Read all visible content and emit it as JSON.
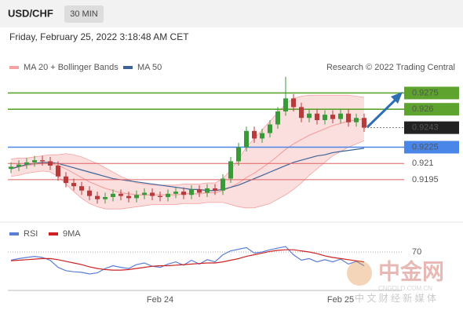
{
  "header": {
    "symbol": "USD/CHF",
    "interval": "30 MIN",
    "datetime": "Friday, February 25, 2022 3:18:48 AM CET"
  },
  "watermark": {
    "brand": "中金网",
    "site": "CNGOLD.COM.CN",
    "tagline": "中 文 财 经 新 媒 体"
  },
  "chart_data": [
    {
      "type": "candlestick",
      "credit": "Research © 2022 Trading Central",
      "categories": [
        null,
        null,
        null,
        null,
        null,
        null,
        null,
        null,
        null,
        null,
        null,
        null,
        null,
        null,
        null,
        null,
        null,
        null,
        null,
        "Feb 24",
        null,
        null,
        null,
        null,
        null,
        null,
        null,
        null,
        null,
        null,
        null,
        null,
        null,
        null,
        null,
        null,
        null,
        null,
        null,
        null,
        null,
        null,
        "Feb 25",
        null,
        null,
        null
      ],
      "open": [
        0.9205,
        0.9207,
        0.9209,
        0.9211,
        0.9213,
        0.9212,
        0.9208,
        0.9198,
        0.9192,
        0.9189,
        0.9185,
        0.918,
        0.9177,
        0.9179,
        0.9182,
        0.918,
        0.9178,
        0.9181,
        0.9183,
        0.918,
        0.9179,
        0.9182,
        0.9184,
        0.9181,
        0.9186,
        0.9183,
        0.9187,
        0.9185,
        0.9196,
        0.9212,
        0.9225,
        0.924,
        0.9233,
        0.9238,
        0.9246,
        0.9258,
        0.927,
        0.9262,
        0.9252,
        0.9256,
        0.925,
        0.9255,
        0.9251,
        0.9256,
        0.9248,
        0.9252
      ],
      "high": [
        0.9211,
        0.9213,
        0.9215,
        0.9217,
        0.9217,
        0.9216,
        0.9212,
        0.9202,
        0.9196,
        0.9193,
        0.9189,
        0.9184,
        0.9183,
        0.9186,
        0.9186,
        0.9184,
        0.9185,
        0.9187,
        0.9187,
        0.9184,
        0.9186,
        0.9188,
        0.9188,
        0.919,
        0.919,
        0.9191,
        0.9191,
        0.92,
        0.9216,
        0.9229,
        0.9244,
        0.9244,
        0.9242,
        0.925,
        0.9262,
        0.929,
        0.9274,
        0.9266,
        0.926,
        0.926,
        0.9259,
        0.9259,
        0.926,
        0.926,
        0.9256,
        0.9256
      ],
      "low": [
        0.9201,
        0.9203,
        0.9205,
        0.9207,
        0.9208,
        0.9204,
        0.9194,
        0.9188,
        0.9185,
        0.9181,
        0.9176,
        0.9173,
        0.9173,
        0.9175,
        0.9176,
        0.9174,
        0.9174,
        0.9177,
        0.9176,
        0.9175,
        0.9175,
        0.9178,
        0.9177,
        0.9177,
        0.9179,
        0.9179,
        0.9181,
        0.9181,
        0.9192,
        0.9208,
        0.9221,
        0.9229,
        0.9229,
        0.9234,
        0.9242,
        0.9254,
        0.9258,
        0.9248,
        0.9248,
        0.9246,
        0.9246,
        0.9247,
        0.9247,
        0.9244,
        0.9244,
        0.9239
      ],
      "close": [
        0.9207,
        0.9209,
        0.9211,
        0.9213,
        0.9212,
        0.9208,
        0.9198,
        0.9192,
        0.9189,
        0.9185,
        0.918,
        0.9177,
        0.9179,
        0.9182,
        0.918,
        0.9178,
        0.9181,
        0.9183,
        0.918,
        0.9179,
        0.9182,
        0.9184,
        0.9181,
        0.9186,
        0.9183,
        0.9187,
        0.9185,
        0.9196,
        0.9212,
        0.9225,
        0.924,
        0.9233,
        0.9238,
        0.9246,
        0.9258,
        0.927,
        0.9262,
        0.9252,
        0.9256,
        0.925,
        0.9255,
        0.9251,
        0.9256,
        0.9248,
        0.9252,
        0.9243
      ],
      "up_color": "#3a9a3a",
      "down_color": "#b83a3a",
      "series": [
        {
          "name": "MA 20 + Bollinger Bands",
          "color": "#f4a3a3",
          "values": [
            0.9206,
            0.9207,
            0.9208,
            0.9209,
            0.921,
            0.921,
            0.9208,
            0.9205,
            0.9201,
            0.9197,
            0.9193,
            0.919,
            0.9187,
            0.9185,
            0.9183,
            0.9182,
            0.9181,
            0.9181,
            0.9181,
            0.9181,
            0.9181,
            0.9181,
            0.9182,
            0.9182,
            0.9182,
            0.9183,
            0.9183,
            0.9185,
            0.9188,
            0.9192,
            0.9197,
            0.9201,
            0.9206,
            0.9211,
            0.9217,
            0.9223,
            0.9228,
            0.9232,
            0.9236,
            0.9239,
            0.9242,
            0.9245,
            0.9247,
            0.9249,
            0.925,
            0.9251
          ],
          "upper": [
            0.9214,
            0.9215,
            0.9215,
            0.9216,
            0.9217,
            0.9218,
            0.9218,
            0.9219,
            0.9218,
            0.9216,
            0.9213,
            0.921,
            0.9206,
            0.9202,
            0.9198,
            0.9195,
            0.9192,
            0.9191,
            0.919,
            0.919,
            0.919,
            0.919,
            0.9191,
            0.9191,
            0.9191,
            0.9192,
            0.9192,
            0.9196,
            0.9204,
            0.9214,
            0.9225,
            0.9233,
            0.9241,
            0.9249,
            0.9257,
            0.9265,
            0.927,
            0.9272,
            0.9273,
            0.9273,
            0.9273,
            0.9273,
            0.9273,
            0.9273,
            0.9272,
            0.9271
          ],
          "lower": [
            0.9198,
            0.9199,
            0.9201,
            0.9202,
            0.9203,
            0.9202,
            0.9198,
            0.9191,
            0.9184,
            0.9178,
            0.9173,
            0.917,
            0.9168,
            0.9168,
            0.9168,
            0.9169,
            0.917,
            0.9171,
            0.9172,
            0.9172,
            0.9172,
            0.9172,
            0.9173,
            0.9173,
            0.9173,
            0.9174,
            0.9174,
            0.9174,
            0.9172,
            0.917,
            0.9169,
            0.9169,
            0.9171,
            0.9173,
            0.9177,
            0.9181,
            0.9186,
            0.9192,
            0.9199,
            0.9205,
            0.9211,
            0.9217,
            0.9221,
            0.9225,
            0.9228,
            0.9231
          ]
        },
        {
          "name": "MA 50",
          "color": "#3d6296",
          "values": [
            0.9205,
            0.9207,
            0.9209,
            0.921,
            0.9211,
            0.9211,
            0.921,
            0.9208,
            0.9206,
            0.9204,
            0.9202,
            0.92,
            0.9198,
            0.9196,
            0.9195,
            0.9194,
            0.9193,
            0.9192,
            0.9191,
            0.919,
            0.9189,
            0.9188,
            0.9187,
            0.9186,
            0.9186,
            0.9185,
            0.9185,
            0.9186,
            0.9188,
            0.919,
            0.9193,
            0.9196,
            0.9199,
            0.9202,
            0.9205,
            0.9208,
            0.9211,
            0.9213,
            0.9215,
            0.9217,
            0.9218,
            0.922,
            0.9221,
            0.9222,
            0.9223,
            0.9224
          ]
        }
      ],
      "ylim": [
        0.9158,
        0.9292
      ],
      "levels": [
        0.9275,
        0.926,
        0.9243,
        0.9225,
        0.921,
        0.9195
      ],
      "level_colors": [
        "#5ea32e",
        "#5ea32e",
        "#222222",
        "#4a86e8",
        "#e06060",
        "#e06060"
      ],
      "level_boxed": [
        true,
        true,
        true,
        true,
        false,
        false
      ]
    },
    {
      "type": "line",
      "series": [
        {
          "name": "RSI",
          "color": "#5b7fd6",
          "values": [
            55,
            58,
            60,
            62,
            60,
            55,
            42,
            36,
            34,
            33,
            30,
            32,
            40,
            45,
            42,
            40,
            47,
            50,
            44,
            42,
            48,
            52,
            46,
            55,
            48,
            56,
            52,
            65,
            72,
            75,
            78,
            68,
            70,
            74,
            77,
            80,
            65,
            55,
            58,
            52,
            56,
            52,
            57,
            48,
            53,
            45
          ]
        },
        {
          "name": "9MA",
          "color": "#cc2222",
          "values": [
            54,
            55,
            56,
            57,
            58,
            58,
            56,
            53,
            50,
            47,
            43,
            40,
            38,
            37,
            37,
            38,
            40,
            42,
            44,
            45,
            45,
            46,
            47,
            48,
            49,
            50,
            50,
            52,
            55,
            58,
            62,
            65,
            68,
            71,
            73,
            74,
            74,
            72,
            70,
            67,
            63,
            60,
            58,
            56,
            54,
            52
          ]
        }
      ],
      "ylim": [
        0,
        100
      ],
      "yticks": [
        70
      ]
    }
  ]
}
